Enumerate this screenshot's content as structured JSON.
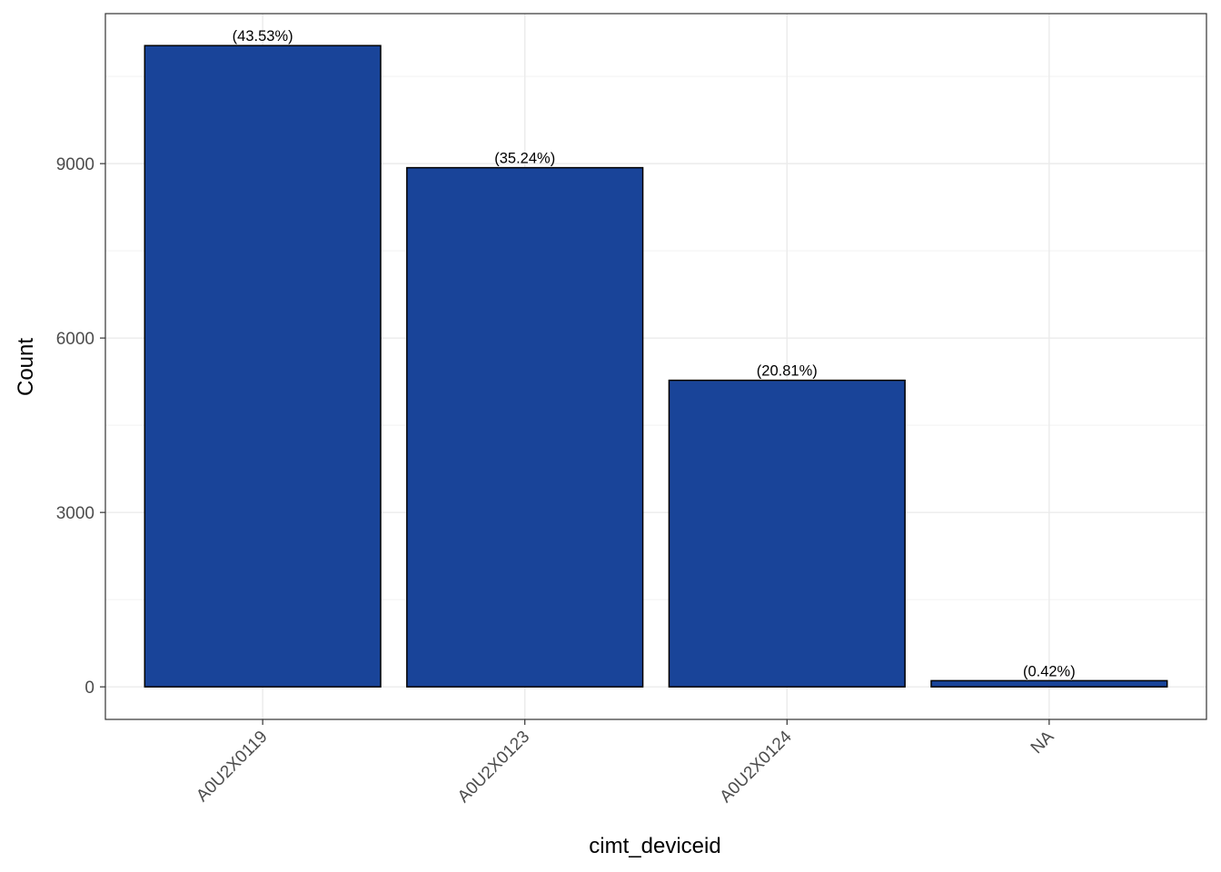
{
  "chart_data": {
    "type": "bar",
    "title": "",
    "xlabel": "cimt_deviceid",
    "ylabel": "Count",
    "categories": [
      "A0U2X0119",
      "A0U2X0123",
      "A0U2X0124",
      "NA"
    ],
    "values": [
      11030,
      8930,
      5273,
      106
    ],
    "labels": [
      "(43.53%)",
      "(35.24%)",
      "(20.81%)",
      "(0.42%)"
    ],
    "ylim": [
      -560,
      11580
    ],
    "yticks": [
      0,
      3000,
      6000,
      9000
    ],
    "ytick_labels": [
      "0",
      "3000",
      "6000",
      "9000"
    ],
    "grid": true,
    "legend": "none",
    "colors": {
      "bar_fill": "#194499",
      "bar_stroke": "#000000",
      "grid_major": "#ebebeb",
      "grid_minor": "#f2f2f2",
      "panel_border": "#333333"
    }
  }
}
